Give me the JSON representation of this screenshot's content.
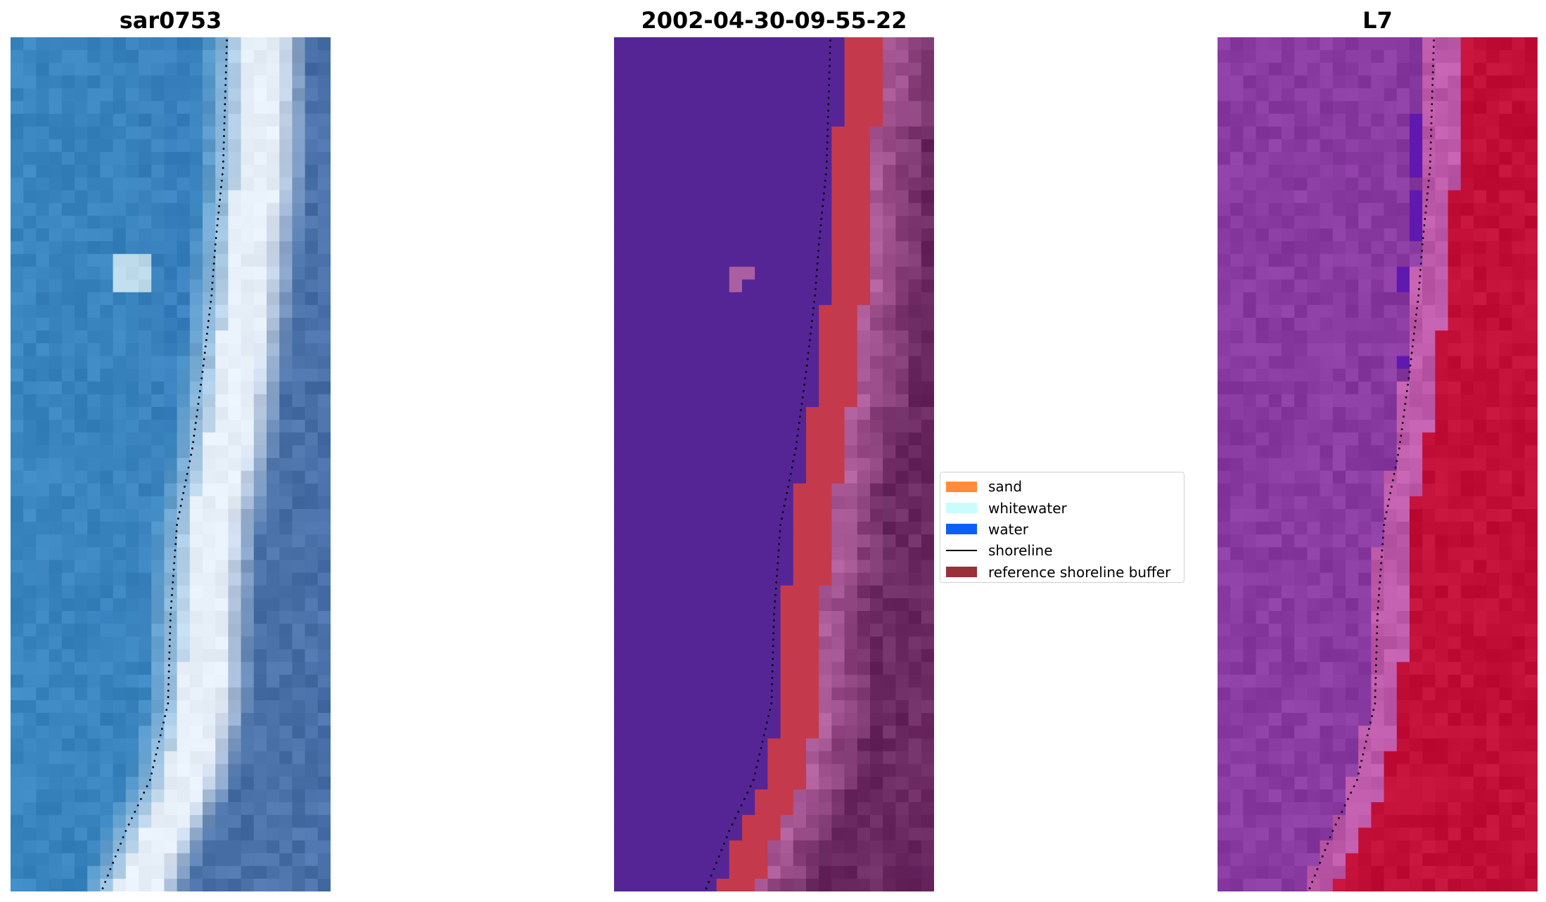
{
  "panels": {
    "left_title": "sar0753",
    "middle_title": "2002-04-30-09-55-22",
    "right_title": "L7"
  },
  "legend": {
    "items": [
      {
        "label": "sand",
        "color": "#ff8c3c",
        "kind": "patch"
      },
      {
        "label": "whitewater",
        "color": "#c8fdfb",
        "kind": "patch"
      },
      {
        "label": "water",
        "color": "#0b5ff5",
        "kind": "patch"
      },
      {
        "label": "shoreline",
        "color": "#000000",
        "kind": "line"
      },
      {
        "label": "reference shoreline buffer",
        "color": "#99303a",
        "kind": "patch"
      }
    ]
  },
  "colors": {
    "water_rgb": "#3a86c0",
    "beach_white": "#e6eef8",
    "land_rgb": "#4a72a8",
    "classified_water": "#552596",
    "buffer_red": "#c43a4c",
    "classified_land": "#6c2a63",
    "index_water": "#8a3ba2",
    "index_land": "#c20f38"
  }
}
